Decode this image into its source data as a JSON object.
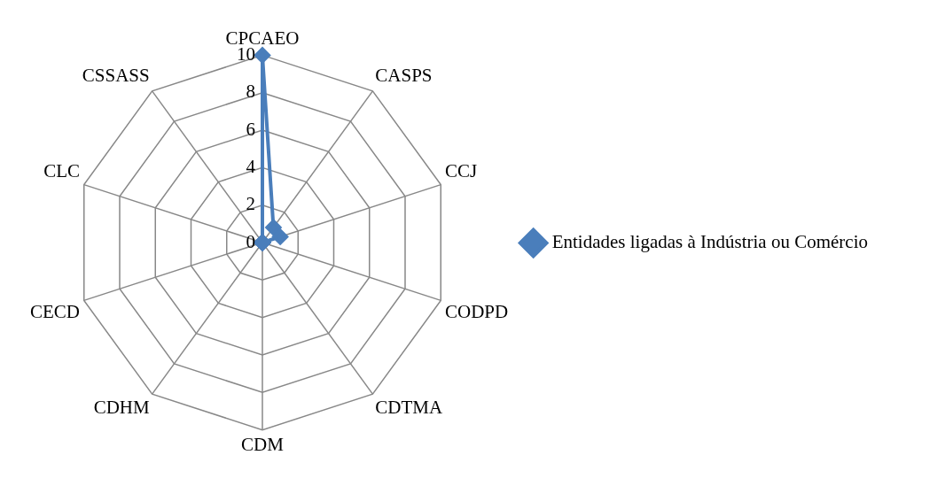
{
  "chart_data": {
    "type": "radar",
    "categories": [
      "CPCAEO",
      "CASPS",
      "CCJ",
      "CODPD",
      "CDTMA",
      "CDM",
      "CDHM",
      "CECD",
      "CLC",
      "CSSASS"
    ],
    "series": [
      {
        "name": "Entidades ligadas à Indústria ou Comércio",
        "color": "#4a7ebb",
        "values": [
          10,
          1,
          1,
          0,
          0,
          0,
          0,
          0,
          0,
          0
        ]
      }
    ],
    "ylim": [
      0,
      10
    ],
    "yticks": [
      0,
      2,
      4,
      6,
      8,
      10
    ],
    "grid": true,
    "legend": "right",
    "marker": "diamond"
  }
}
